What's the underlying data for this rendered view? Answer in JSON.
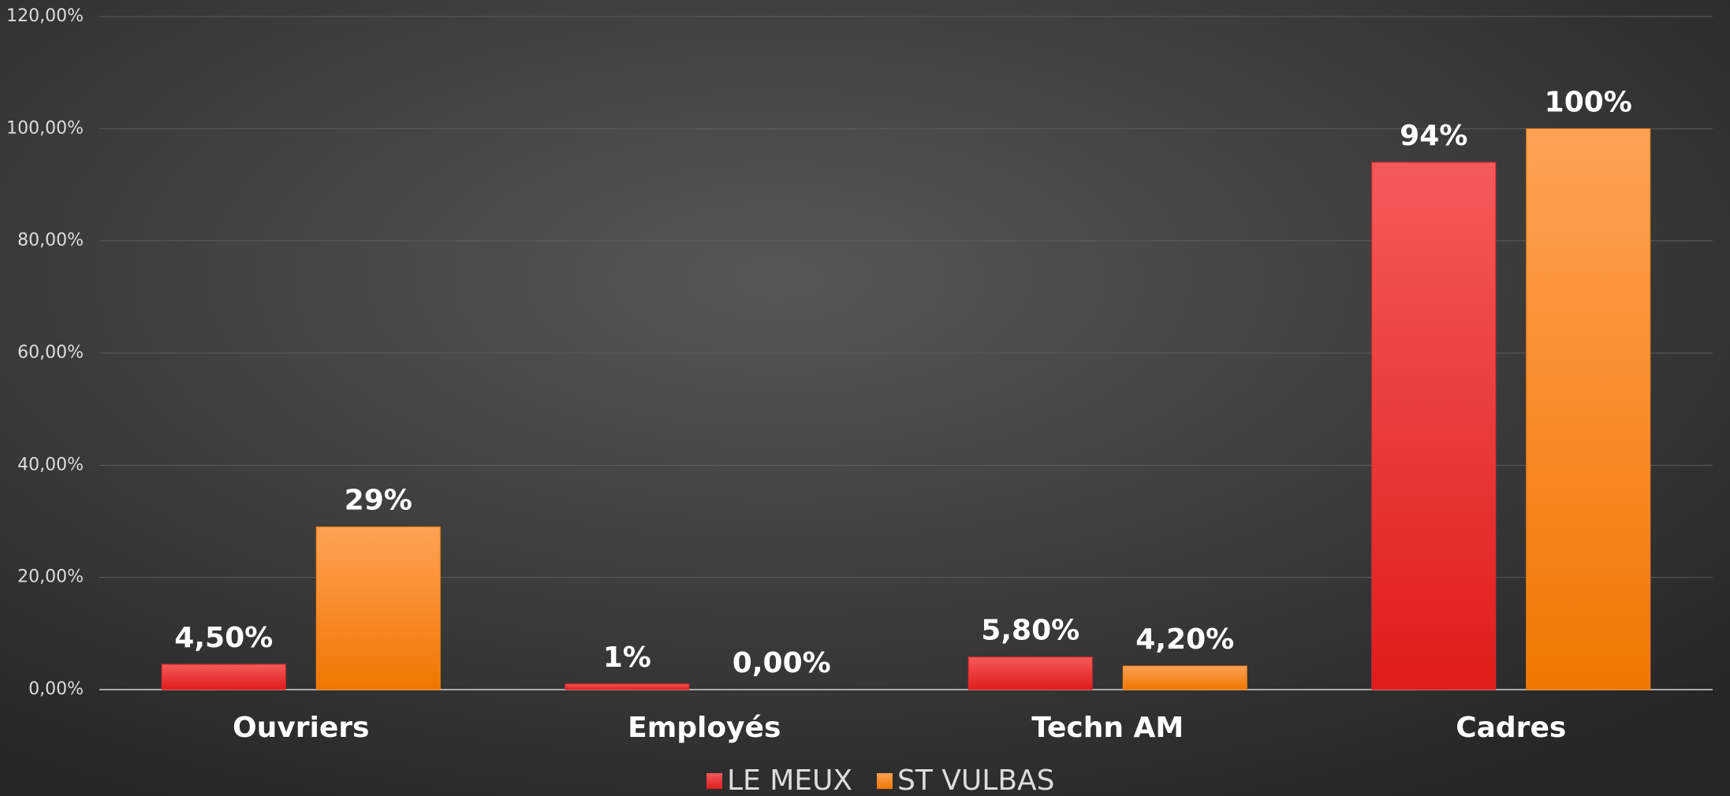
{
  "chart_data": {
    "type": "bar",
    "categories": [
      "Ouvriers",
      "Employés",
      "Techn AM",
      "Cadres"
    ],
    "series": [
      {
        "name": "LE MEUX",
        "color": "#e8262a",
        "values": [
          4.5,
          1,
          5.8,
          94
        ],
        "value_labels": [
          "4,50%",
          "1%",
          "5,80%",
          "94%"
        ]
      },
      {
        "name": "ST VULBAS",
        "color": "#f98317",
        "values": [
          29,
          0,
          4.2,
          100
        ],
        "value_labels": [
          "29%",
          "0,00%",
          "4,20%",
          "100%"
        ]
      }
    ],
    "ylim": [
      0,
      120
    ],
    "yticks": [
      {
        "value": 0,
        "label": "0,00%"
      },
      {
        "value": 20,
        "label": "20,00%"
      },
      {
        "value": 40,
        "label": "40,00%"
      },
      {
        "value": 60,
        "label": "60,00%"
      },
      {
        "value": 80,
        "label": "80,00%"
      },
      {
        "value": 100,
        "label": "100,00%"
      },
      {
        "value": 120,
        "label": "120,00%"
      }
    ],
    "grid": true,
    "legend": "bottom"
  }
}
